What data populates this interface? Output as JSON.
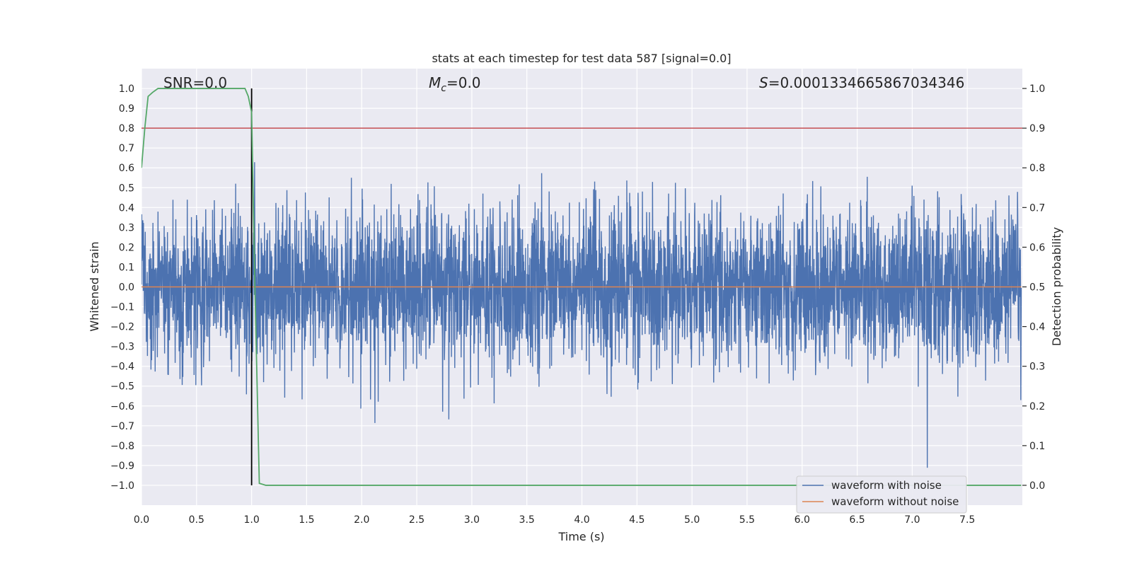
{
  "chart_data": {
    "type": "line",
    "title": "stats at each timestep for test data 587 [signal=0.0]",
    "xlabel": "Time (s)",
    "ylabel_left": "Whitened strain",
    "ylabel_right": "Detection probability",
    "xlim": [
      0.0,
      8.0
    ],
    "ylim_left": [
      -1.1,
      1.1
    ],
    "ylim_right": [
      -0.05,
      1.05
    ],
    "x_ticks": [
      0.0,
      0.5,
      1.0,
      1.5,
      2.0,
      2.5,
      3.0,
      3.5,
      4.0,
      4.5,
      5.0,
      5.5,
      6.0,
      6.5,
      7.0,
      7.5
    ],
    "x_tick_labels": [
      "0.0",
      "0.5",
      "1.0",
      "1.5",
      "2.0",
      "2.5",
      "3.0",
      "3.5",
      "4.0",
      "4.5",
      "5.0",
      "5.5",
      "6.0",
      "6.5",
      "7.0",
      "7.5"
    ],
    "y_left_ticks": [
      1.0,
      0.9,
      0.8,
      0.7,
      0.6,
      0.5,
      0.4,
      0.3,
      0.2,
      0.1,
      0.0,
      -0.1,
      -0.2,
      -0.3,
      -0.4,
      -0.5,
      -0.6,
      -0.7,
      -0.8,
      -0.9,
      -1.0
    ],
    "y_left_tick_labels": [
      "1.0",
      "0.9",
      "0.8",
      "0.7",
      "0.6",
      "0.5",
      "0.4",
      "0.3",
      "0.2",
      "0.1",
      "0.0",
      "−0.1",
      "−0.2",
      "−0.3",
      "−0.4",
      "−0.5",
      "−0.6",
      "−0.7",
      "−0.8",
      "−0.9",
      "−1.0"
    ],
    "y_right_ticks": [
      1.0,
      0.9,
      0.8,
      0.7,
      0.6,
      0.5,
      0.4,
      0.3,
      0.2,
      0.1,
      0.0
    ],
    "y_right_tick_labels": [
      "1.0",
      "0.9",
      "0.8",
      "0.7",
      "0.6",
      "0.5",
      "0.4",
      "0.3",
      "0.2",
      "0.1",
      "0.0"
    ],
    "annotations": {
      "snr": "SNR=0.0",
      "mc_symbol": "M",
      "mc_sub": "c",
      "mc_value": "=0.0",
      "s_symbol": "S",
      "s_value": "=0.0001334665867034346"
    },
    "series": [
      {
        "name": "waveform with noise",
        "color": "#4c72b0",
        "kind": "noise",
        "envelope_std": 0.19,
        "x_range": [
          0.0,
          7.99
        ]
      },
      {
        "name": "waveform without noise",
        "color": "#dd8452",
        "y_constant": 0.0
      },
      {
        "name": "detection probability",
        "color": "#55a868",
        "axis": "right",
        "x": [
          0.0,
          0.03,
          0.06,
          0.1,
          0.15,
          0.2,
          0.3,
          0.5,
          0.7,
          0.9,
          0.94,
          0.97,
          1.0,
          1.03,
          1.07,
          1.13,
          1.2,
          1.5,
          2.0,
          3.0,
          4.0,
          5.0,
          6.0,
          7.0,
          7.99
        ],
        "y": [
          0.8,
          0.9,
          0.98,
          0.99,
          1.0,
          1.0,
          1.0,
          1.0,
          1.0,
          1.0,
          1.0,
          0.98,
          0.94,
          0.5,
          0.005,
          0.0,
          0.0,
          0.0,
          0.0,
          0.0,
          0.0,
          0.0,
          0.0,
          0.0,
          0.0
        ]
      },
      {
        "name": "threshold",
        "color": "#c44e52",
        "axis": "right",
        "y_constant": 0.9
      },
      {
        "name": "signal onset",
        "color": "#000000",
        "x_constant": 1.0,
        "y_range": [
          -1.0,
          1.0
        ]
      }
    ],
    "legend": {
      "position": "lower-right",
      "entries": [
        {
          "label": "waveform with noise",
          "color": "#4c72b0"
        },
        {
          "label": "waveform without noise",
          "color": "#dd8452"
        }
      ]
    },
    "grid": true
  }
}
